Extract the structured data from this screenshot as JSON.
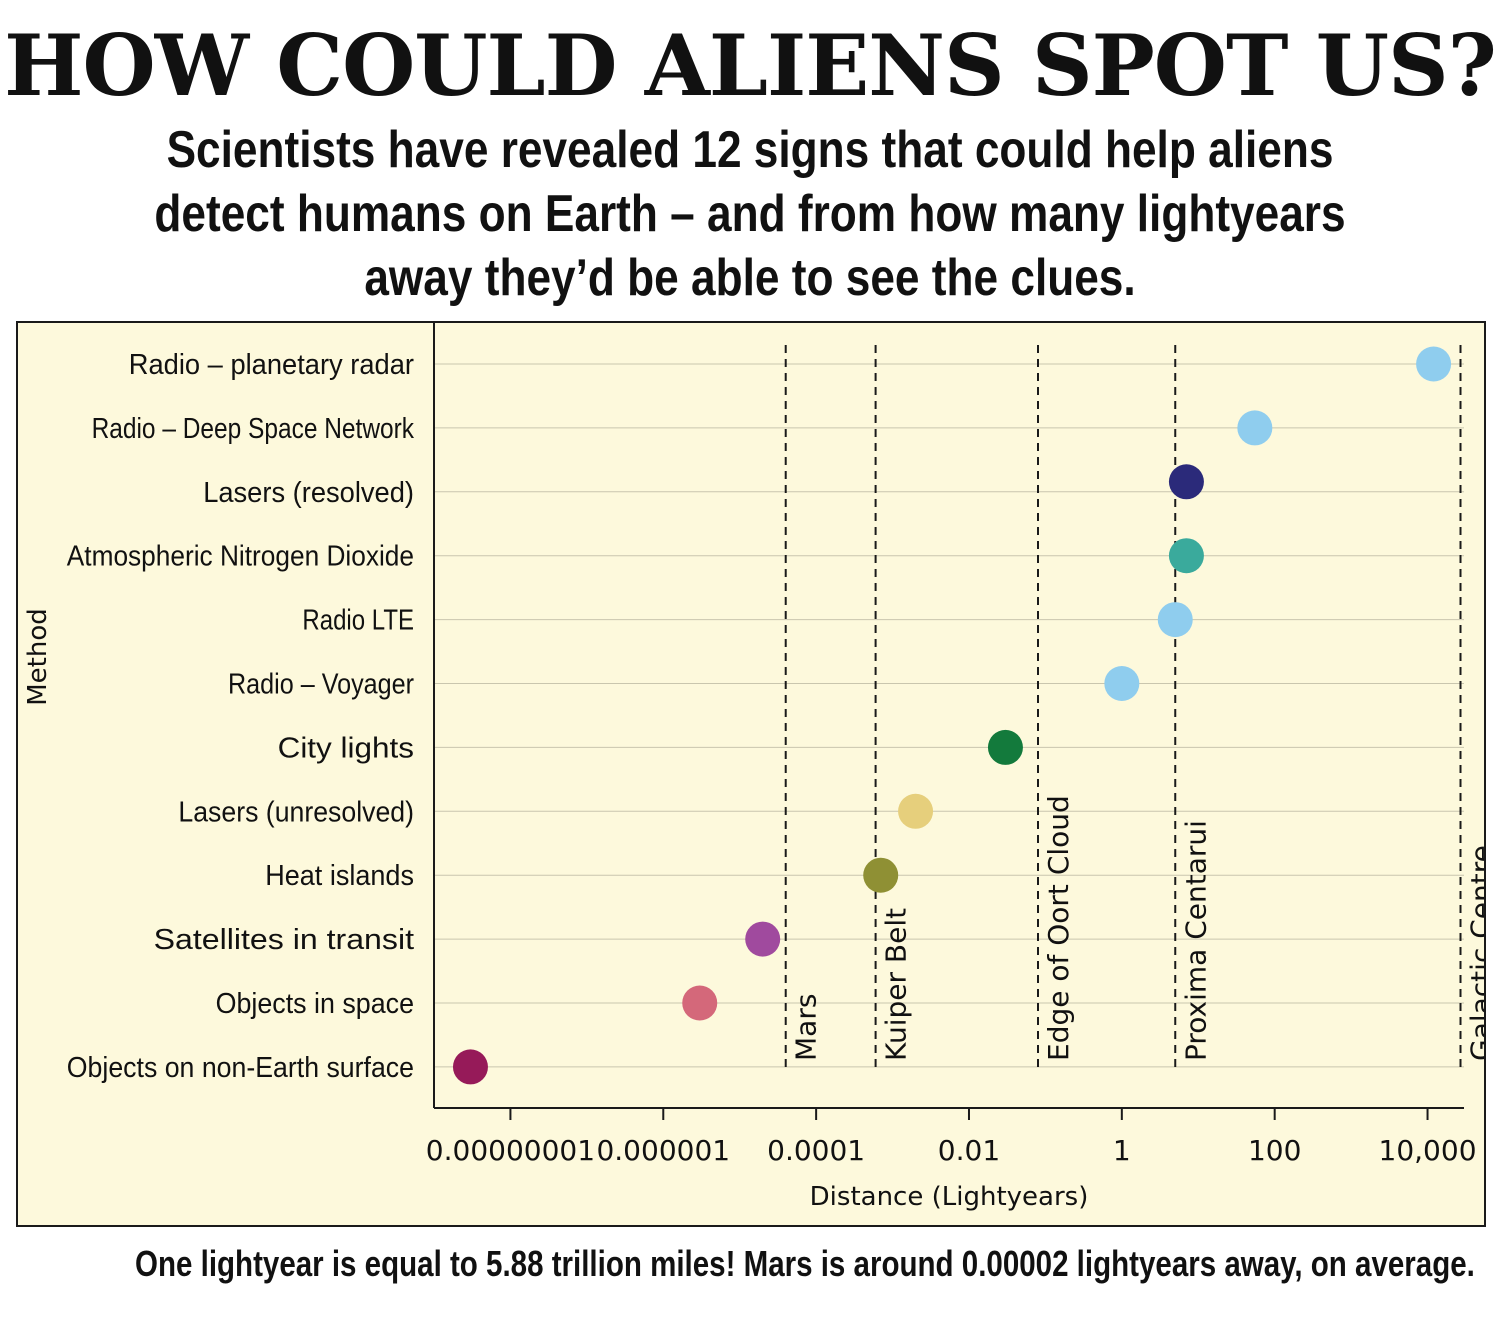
{
  "headline": "HOW COULD ALIENS SPOT US?",
  "subhead": "Scientists have revealed 12 signs that could help aliens detect humans on Earth – and from how many lightyears away they’d be able to see the clues.",
  "footer": "One lightyear is equal to 5.88 trillion miles! Mars is around 0.00002 lightyears away, on average.",
  "chart_data": {
    "type": "scatter",
    "title": "",
    "xlabel": "Distance (Lightyears)",
    "ylabel": "Method",
    "x_scale": "log",
    "xlim": [
      1e-09,
      30000
    ],
    "x_ticks": [
      {
        "value": 1e-08,
        "label": "0.00000001"
      },
      {
        "value": 1e-06,
        "label": "0.000001"
      },
      {
        "value": 0.0001,
        "label": "0.0001"
      },
      {
        "value": 0.01,
        "label": "0.01"
      },
      {
        "value": 1,
        "label": "1"
      },
      {
        "value": 100,
        "label": "100"
      },
      {
        "value": 10000,
        "label": "10,000"
      }
    ],
    "grid": "horizontal",
    "categories": [
      "Radio – planetary radar",
      "Radio – Deep Space Network",
      "Lasers (resolved)",
      "Atmospheric Nitrogen Dioxide",
      "Radio LTE",
      "Radio – Voyager",
      "City lights",
      "Lasers (unresolved)",
      "Heat islands",
      "Satellites in transit",
      "Objects in space",
      "Objects on non-Earth surface"
    ],
    "points": [
      {
        "category": "Radio – planetary radar",
        "x": 12000,
        "color": "#8fcdee"
      },
      {
        "category": "Radio – Deep Space Network",
        "x": 55,
        "color": "#8fcdee"
      },
      {
        "category": "Lasers (resolved)",
        "x": 7,
        "color": "#2b2a7a"
      },
      {
        "category": "Atmospheric Nitrogen Dioxide",
        "x": 7,
        "color": "#3aaa9c"
      },
      {
        "category": "Radio LTE",
        "x": 5,
        "color": "#8fcdee"
      },
      {
        "category": "Radio – Voyager",
        "x": 1,
        "color": "#8fcdee"
      },
      {
        "category": "City lights",
        "x": 0.03,
        "color": "#137a3c"
      },
      {
        "category": "Lasers (unresolved)",
        "x": 0.002,
        "color": "#e6cf7c"
      },
      {
        "category": "Heat islands",
        "x": 0.0007,
        "color": "#8f9034"
      },
      {
        "category": "Satellites in transit",
        "x": 2e-05,
        "color": "#a04a9e"
      },
      {
        "category": "Objects in space",
        "x": 3e-06,
        "color": "#d4687a"
      },
      {
        "category": "Objects on non-Earth surface",
        "x": 3e-09,
        "color": "#961a59"
      }
    ],
    "reference_lines": [
      {
        "label": "Mars",
        "x": 4e-05
      },
      {
        "label": "Kuiper Belt",
        "x": 0.0006
      },
      {
        "label": "Edge of Oort Cloud",
        "x": 0.08
      },
      {
        "label": "Proxima Centarui",
        "x": 5
      },
      {
        "label": "Galactic Centre",
        "x": 27000
      }
    ]
  }
}
